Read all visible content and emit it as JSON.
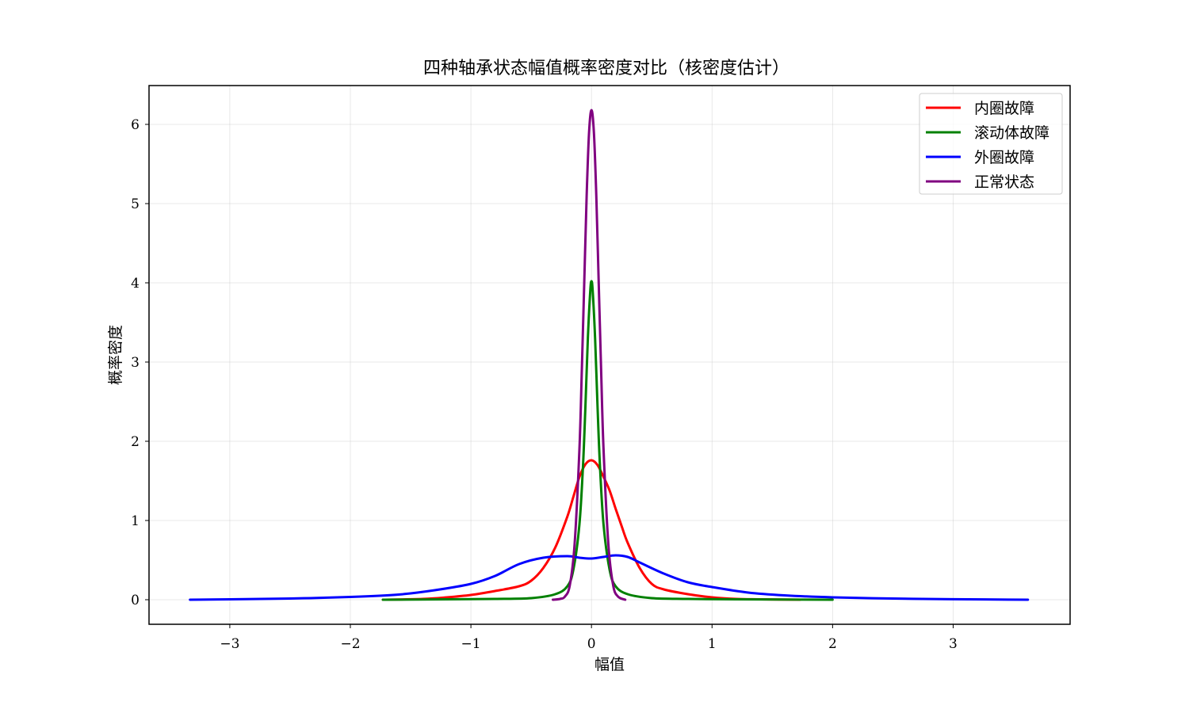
{
  "chart_data": {
    "type": "line",
    "title": "四种轴承状态幅值概率密度对比（核密度估计）",
    "xlabel": "幅值",
    "ylabel": "概率密度",
    "xlim": [
      -3.67,
      3.97
    ],
    "ylim": [
      -0.31,
      6.49
    ],
    "xticks": [
      -3,
      -2,
      -1,
      0,
      1,
      2,
      3
    ],
    "xtick_labels": [
      "−3",
      "−2",
      "−1",
      "0",
      "1",
      "2",
      "3"
    ],
    "yticks": [
      0,
      1,
      2,
      3,
      4,
      5,
      6
    ],
    "ytick_labels": [
      "0",
      "1",
      "2",
      "3",
      "4",
      "5",
      "6"
    ],
    "grid": true,
    "legend_position": "top-right",
    "series": [
      {
        "name": "内圈故障",
        "color": "#ff0000",
        "x": [
          -1.73,
          -1.4,
          -1.2,
          -1.0,
          -0.8,
          -0.6,
          -0.5,
          -0.4,
          -0.3,
          -0.2,
          -0.15,
          -0.1,
          -0.05,
          0.0,
          0.05,
          0.1,
          0.15,
          0.2,
          0.25,
          0.3,
          0.4,
          0.5,
          0.6,
          0.8,
          1.0,
          1.2,
          1.4,
          1.73
        ],
        "y": [
          0.0,
          0.01,
          0.03,
          0.06,
          0.11,
          0.17,
          0.24,
          0.4,
          0.66,
          1.05,
          1.3,
          1.55,
          1.71,
          1.76,
          1.7,
          1.55,
          1.38,
          1.15,
          0.93,
          0.72,
          0.4,
          0.2,
          0.13,
          0.07,
          0.03,
          0.01,
          0.005,
          0.0
        ]
      },
      {
        "name": "滚动体故障",
        "color": "#008000",
        "x": [
          -1.73,
          -1.2,
          -0.8,
          -0.5,
          -0.3,
          -0.2,
          -0.15,
          -0.1,
          -0.07,
          -0.05,
          -0.03,
          -0.01,
          0.0,
          0.01,
          0.03,
          0.05,
          0.07,
          0.1,
          0.15,
          0.2,
          0.3,
          0.5,
          0.8,
          1.2,
          2.0
        ],
        "y": [
          0.0,
          0.005,
          0.01,
          0.02,
          0.07,
          0.17,
          0.38,
          0.95,
          1.7,
          2.45,
          3.3,
          3.9,
          4.02,
          3.9,
          3.3,
          2.45,
          1.7,
          0.95,
          0.38,
          0.17,
          0.07,
          0.02,
          0.01,
          0.005,
          0.0
        ]
      },
      {
        "name": "外圈故障",
        "color": "#0000ff",
        "x": [
          -3.33,
          -3.0,
          -2.5,
          -2.0,
          -1.6,
          -1.3,
          -1.0,
          -0.8,
          -0.6,
          -0.4,
          -0.2,
          -0.1,
          0.0,
          0.1,
          0.2,
          0.3,
          0.4,
          0.6,
          0.8,
          1.0,
          1.3,
          1.6,
          2.0,
          2.5,
          3.0,
          3.62
        ],
        "y": [
          0.0,
          0.005,
          0.015,
          0.035,
          0.065,
          0.12,
          0.2,
          0.3,
          0.45,
          0.53,
          0.55,
          0.53,
          0.52,
          0.54,
          0.56,
          0.54,
          0.47,
          0.33,
          0.22,
          0.16,
          0.09,
          0.055,
          0.03,
          0.015,
          0.006,
          0.0
        ]
      },
      {
        "name": "正常状态",
        "color": "#800080",
        "x": [
          -0.32,
          -0.26,
          -0.22,
          -0.18,
          -0.14,
          -0.1,
          -0.08,
          -0.06,
          -0.04,
          -0.02,
          0.0,
          0.02,
          0.04,
          0.06,
          0.08,
          0.1,
          0.14,
          0.18,
          0.22,
          0.28
        ],
        "y": [
          0.0,
          0.01,
          0.04,
          0.18,
          0.7,
          1.9,
          2.9,
          4.0,
          5.1,
          5.9,
          6.18,
          5.9,
          5.1,
          4.0,
          2.9,
          1.9,
          0.7,
          0.18,
          0.04,
          0.0
        ]
      }
    ]
  }
}
